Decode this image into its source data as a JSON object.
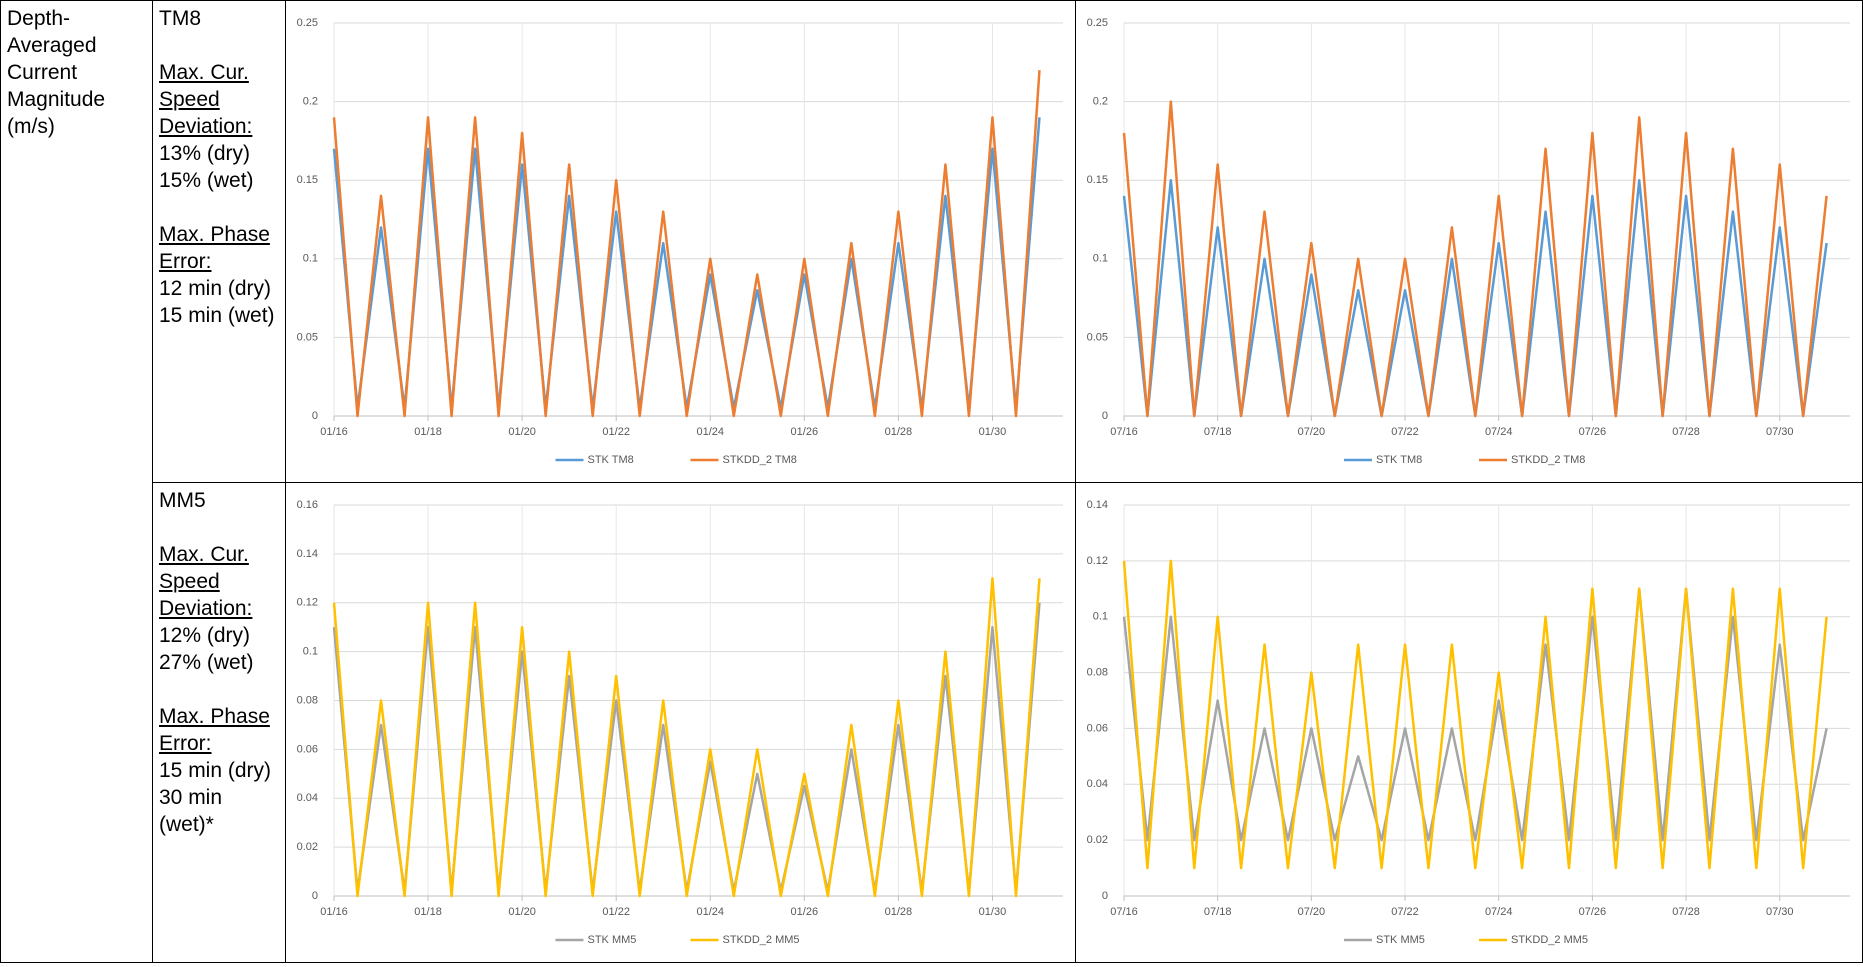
{
  "table": {
    "header_cell": "Depth-Averaged Current Magnitude (m/s)",
    "rows": [
      {
        "station": "TM8",
        "deviation_label": "Max. Cur. Speed Deviation:",
        "deviation_values": [
          "13% (dry)",
          "15% (wet)"
        ],
        "phase_label": "Max. Phase Error:",
        "phase_values": [
          "12 min (dry)",
          "15 min (wet)"
        ]
      },
      {
        "station": "MM5",
        "deviation_label": "Max. Cur. Speed Deviation:",
        "deviation_values": [
          "12% (dry)",
          "27% (wet)"
        ],
        "phase_label": "Max. Phase Error:",
        "phase_values": [
          "15 min (dry)",
          "30 min (wet)*"
        ]
      }
    ]
  },
  "chart_data": [
    {
      "type": "line",
      "grid": true,
      "legend": "bottom",
      "x": [
        0,
        0.5,
        1,
        1.5,
        2,
        2.5,
        3,
        3.5,
        4,
        4.5,
        5,
        5.5,
        6,
        6.5,
        7,
        7.5,
        8,
        8.5,
        9,
        9.5,
        10,
        10.5,
        11,
        11.5,
        12,
        12.5,
        13,
        13.5,
        14,
        14.5,
        15
      ],
      "xlim": [
        0,
        15.5
      ],
      "xticks": [
        {
          "value": 0,
          "label": "01/16"
        },
        {
          "value": 2,
          "label": "01/18"
        },
        {
          "value": 4,
          "label": "01/20"
        },
        {
          "value": 6,
          "label": "01/22"
        },
        {
          "value": 8,
          "label": "01/24"
        },
        {
          "value": 10,
          "label": "01/26"
        },
        {
          "value": 12,
          "label": "01/28"
        },
        {
          "value": 14,
          "label": "01/30"
        }
      ],
      "ylim": [
        0,
        0.25
      ],
      "yticks": [
        0,
        0.05,
        0.1,
        0.15,
        0.2,
        0.25
      ],
      "series": [
        {
          "name": "STK TM8",
          "color": "#5b9bd5",
          "values": [
            0.17,
            0.005,
            0.12,
            0.005,
            0.17,
            0.005,
            0.17,
            0.005,
            0.16,
            0.005,
            0.14,
            0.005,
            0.13,
            0.005,
            0.11,
            0.005,
            0.09,
            0.005,
            0.08,
            0.005,
            0.09,
            0.005,
            0.1,
            0.005,
            0.11,
            0.005,
            0.14,
            0.005,
            0.17,
            0.005,
            0.19
          ]
        },
        {
          "name": "STKDD_2 TM8",
          "color": "#ed7d31",
          "values": [
            0.19,
            0,
            0.14,
            0,
            0.19,
            0,
            0.19,
            0,
            0.18,
            0,
            0.16,
            0,
            0.15,
            0,
            0.13,
            0,
            0.1,
            0,
            0.09,
            0,
            0.1,
            0,
            0.11,
            0,
            0.13,
            0,
            0.16,
            0,
            0.19,
            0,
            0.22
          ]
        }
      ]
    },
    {
      "type": "line",
      "grid": true,
      "legend": "bottom",
      "x": [
        0,
        0.5,
        1,
        1.5,
        2,
        2.5,
        3,
        3.5,
        4,
        4.5,
        5,
        5.5,
        6,
        6.5,
        7,
        7.5,
        8,
        8.5,
        9,
        9.5,
        10,
        10.5,
        11,
        11.5,
        12,
        12.5,
        13,
        13.5,
        14,
        14.5,
        15
      ],
      "xlim": [
        0,
        15.5
      ],
      "xticks": [
        {
          "value": 0,
          "label": "07/16"
        },
        {
          "value": 2,
          "label": "07/18"
        },
        {
          "value": 4,
          "label": "07/20"
        },
        {
          "value": 6,
          "label": "07/22"
        },
        {
          "value": 8,
          "label": "07/24"
        },
        {
          "value": 10,
          "label": "07/26"
        },
        {
          "value": 12,
          "label": "07/28"
        },
        {
          "value": 14,
          "label": "07/30"
        }
      ],
      "ylim": [
        0,
        0.25
      ],
      "yticks": [
        0,
        0.05,
        0.1,
        0.15,
        0.2,
        0.25
      ],
      "series": [
        {
          "name": "STK TM8",
          "color": "#5b9bd5",
          "values": [
            0.14,
            0,
            0.15,
            0,
            0.12,
            0,
            0.1,
            0,
            0.09,
            0,
            0.08,
            0,
            0.08,
            0,
            0.1,
            0,
            0.11,
            0,
            0.13,
            0,
            0.14,
            0,
            0.15,
            0,
            0.14,
            0,
            0.13,
            0,
            0.12,
            0,
            0.11
          ]
        },
        {
          "name": "STKDD_2 TM8",
          "color": "#ed7d31",
          "values": [
            0.18,
            0,
            0.2,
            0,
            0.16,
            0,
            0.13,
            0,
            0.11,
            0,
            0.1,
            0,
            0.1,
            0,
            0.12,
            0,
            0.14,
            0,
            0.17,
            0,
            0.18,
            0,
            0.19,
            0,
            0.18,
            0,
            0.17,
            0,
            0.16,
            0,
            0.14
          ]
        }
      ]
    },
    {
      "type": "line",
      "grid": true,
      "legend": "bottom",
      "x": [
        0,
        0.5,
        1,
        1.5,
        2,
        2.5,
        3,
        3.5,
        4,
        4.5,
        5,
        5.5,
        6,
        6.5,
        7,
        7.5,
        8,
        8.5,
        9,
        9.5,
        10,
        10.5,
        11,
        11.5,
        12,
        12.5,
        13,
        13.5,
        14,
        14.5,
        15
      ],
      "xlim": [
        0,
        15.5
      ],
      "xticks": [
        {
          "value": 0,
          "label": "01/16"
        },
        {
          "value": 2,
          "label": "01/18"
        },
        {
          "value": 4,
          "label": "01/20"
        },
        {
          "value": 6,
          "label": "01/22"
        },
        {
          "value": 8,
          "label": "01/24"
        },
        {
          "value": 10,
          "label": "01/26"
        },
        {
          "value": 12,
          "label": "01/28"
        },
        {
          "value": 14,
          "label": "01/30"
        }
      ],
      "ylim": [
        0,
        0.16
      ],
      "yticks": [
        0,
        0.02,
        0.04,
        0.06,
        0.08,
        0.1,
        0.12,
        0.14,
        0.16
      ],
      "series": [
        {
          "name": "STK MM5",
          "color": "#a5a5a5",
          "values": [
            0.11,
            0.002,
            0.07,
            0.002,
            0.11,
            0.002,
            0.11,
            0.002,
            0.1,
            0.002,
            0.09,
            0.002,
            0.08,
            0.002,
            0.07,
            0.002,
            0.055,
            0.002,
            0.05,
            0.002,
            0.045,
            0.002,
            0.06,
            0.002,
            0.07,
            0.002,
            0.09,
            0.002,
            0.11,
            0.002,
            0.12
          ]
        },
        {
          "name": "STKDD_2 MM5",
          "color": "#ffc000",
          "values": [
            0.12,
            0,
            0.08,
            0,
            0.12,
            0,
            0.12,
            0,
            0.11,
            0,
            0.1,
            0,
            0.09,
            0,
            0.08,
            0,
            0.06,
            0,
            0.06,
            0,
            0.05,
            0,
            0.07,
            0,
            0.08,
            0,
            0.1,
            0,
            0.13,
            0,
            0.13
          ]
        }
      ]
    },
    {
      "type": "line",
      "grid": true,
      "legend": "bottom",
      "x": [
        0,
        0.5,
        1,
        1.5,
        2,
        2.5,
        3,
        3.5,
        4,
        4.5,
        5,
        5.5,
        6,
        6.5,
        7,
        7.5,
        8,
        8.5,
        9,
        9.5,
        10,
        10.5,
        11,
        11.5,
        12,
        12.5,
        13,
        13.5,
        14,
        14.5,
        15
      ],
      "xlim": [
        0,
        15.5
      ],
      "xticks": [
        {
          "value": 0,
          "label": "07/16"
        },
        {
          "value": 2,
          "label": "07/18"
        },
        {
          "value": 4,
          "label": "07/20"
        },
        {
          "value": 6,
          "label": "07/22"
        },
        {
          "value": 8,
          "label": "07/24"
        },
        {
          "value": 10,
          "label": "07/26"
        },
        {
          "value": 12,
          "label": "07/28"
        },
        {
          "value": 14,
          "label": "07/30"
        }
      ],
      "ylim": [
        0,
        0.14
      ],
      "yticks": [
        0,
        0.02,
        0.04,
        0.06,
        0.08,
        0.1,
        0.12,
        0.14
      ],
      "series": [
        {
          "name": "STK MM5",
          "color": "#a5a5a5",
          "values": [
            0.1,
            0.02,
            0.1,
            0.02,
            0.07,
            0.02,
            0.06,
            0.02,
            0.06,
            0.02,
            0.05,
            0.02,
            0.06,
            0.02,
            0.06,
            0.02,
            0.07,
            0.02,
            0.09,
            0.02,
            0.1,
            0.02,
            0.11,
            0.02,
            0.11,
            0.02,
            0.1,
            0.02,
            0.09,
            0.02,
            0.06
          ]
        },
        {
          "name": "STKDD_2 MM5",
          "color": "#ffc000",
          "values": [
            0.12,
            0.01,
            0.12,
            0.01,
            0.1,
            0.01,
            0.09,
            0.01,
            0.08,
            0.01,
            0.09,
            0.01,
            0.09,
            0.01,
            0.09,
            0.01,
            0.08,
            0.01,
            0.1,
            0.01,
            0.11,
            0.01,
            0.11,
            0.01,
            0.11,
            0.01,
            0.11,
            0.01,
            0.11,
            0.01,
            0.1
          ]
        }
      ]
    }
  ]
}
